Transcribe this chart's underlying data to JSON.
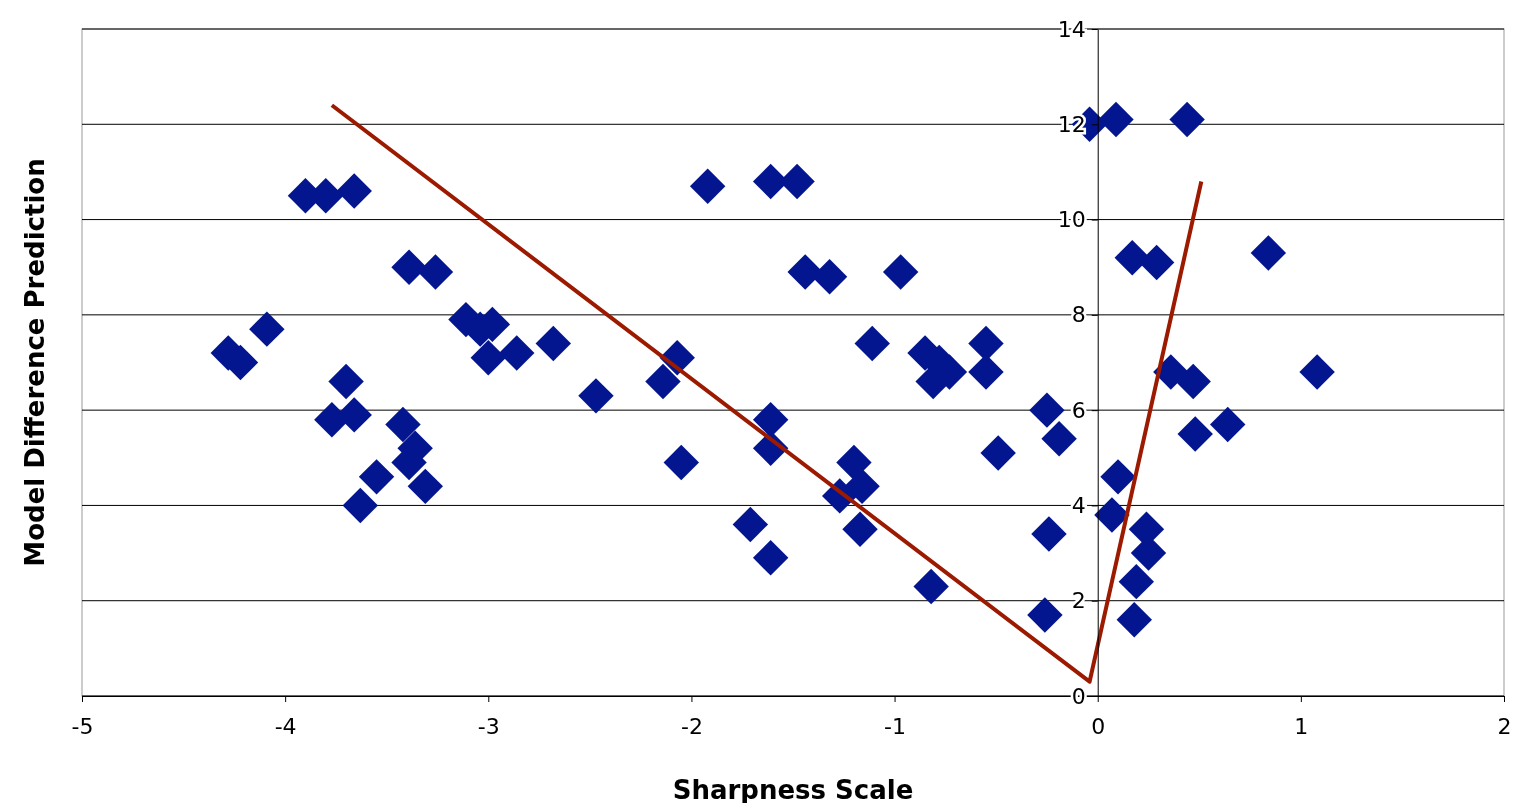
{
  "chart_data": {
    "type": "scatter",
    "xlabel": "Sharpness Scale",
    "ylabel": "Model Difference Prediction",
    "xlim": [
      -5,
      2
    ],
    "ylim": [
      0,
      14
    ],
    "xticks": [
      -5,
      -4,
      -3,
      -2,
      -1,
      0,
      1,
      2
    ],
    "yticks": [
      0,
      2,
      4,
      6,
      8,
      10,
      12,
      14
    ],
    "grid": "y",
    "series": [
      {
        "marker": "diamond",
        "color": "#04168f",
        "x": [
          -4.28,
          -4.22,
          -4.09,
          -3.9,
          -3.8,
          -3.66,
          -3.39,
          -3.26,
          -3.7,
          -3.77,
          -3.66,
          -3.55,
          -3.63,
          -3.42,
          -3.36,
          -3.39,
          -3.31,
          -3.11,
          -3.04,
          -2.98,
          -3.0,
          -2.86,
          -2.68,
          -2.47,
          -2.14,
          -2.07,
          -2.05,
          -1.92,
          -1.71,
          -1.61,
          -1.61,
          -1.61,
          -1.61,
          -1.48,
          -1.44,
          -1.32,
          -1.27,
          -1.2,
          -1.17,
          -1.16,
          -1.11,
          -0.97,
          -0.85,
          -0.81,
          -0.78,
          -0.73,
          -0.82,
          -0.55,
          -0.55,
          -0.49,
          -0.25,
          -0.19,
          -0.24,
          -0.26,
          -0.04,
          0.09,
          0.44,
          0.17,
          0.29,
          0.1,
          0.07,
          0.24,
          0.25,
          0.19,
          0.18,
          0.36,
          0.47,
          0.48,
          0.64,
          0.84,
          1.08
        ],
        "values": [
          7.2,
          7.0,
          7.7,
          10.5,
          10.5,
          10.6,
          9.0,
          8.9,
          6.6,
          5.8,
          5.9,
          4.6,
          4.0,
          5.7,
          5.2,
          4.9,
          4.4,
          7.9,
          7.7,
          7.8,
          7.1,
          7.2,
          7.4,
          6.3,
          6.6,
          7.1,
          4.9,
          10.7,
          3.6,
          2.9,
          5.8,
          5.2,
          10.8,
          10.8,
          8.9,
          8.8,
          4.2,
          4.9,
          3.5,
          4.4,
          7.4,
          8.9,
          7.2,
          6.6,
          7.0,
          6.8,
          2.3,
          7.4,
          6.8,
          5.1,
          6.0,
          5.4,
          3.4,
          1.7,
          12.0,
          12.1,
          12.1,
          9.2,
          9.1,
          4.6,
          3.8,
          3.5,
          3.0,
          2.4,
          1.6,
          6.8,
          6.6,
          5.5,
          5.7,
          9.3,
          6.8
        ]
      },
      {
        "type": "line",
        "marker": "none",
        "color": "#9b1a00",
        "x": [
          -3.77,
          -0.04,
          0.51
        ],
        "values": [
          12.4,
          0.3,
          10.8
        ]
      }
    ]
  }
}
